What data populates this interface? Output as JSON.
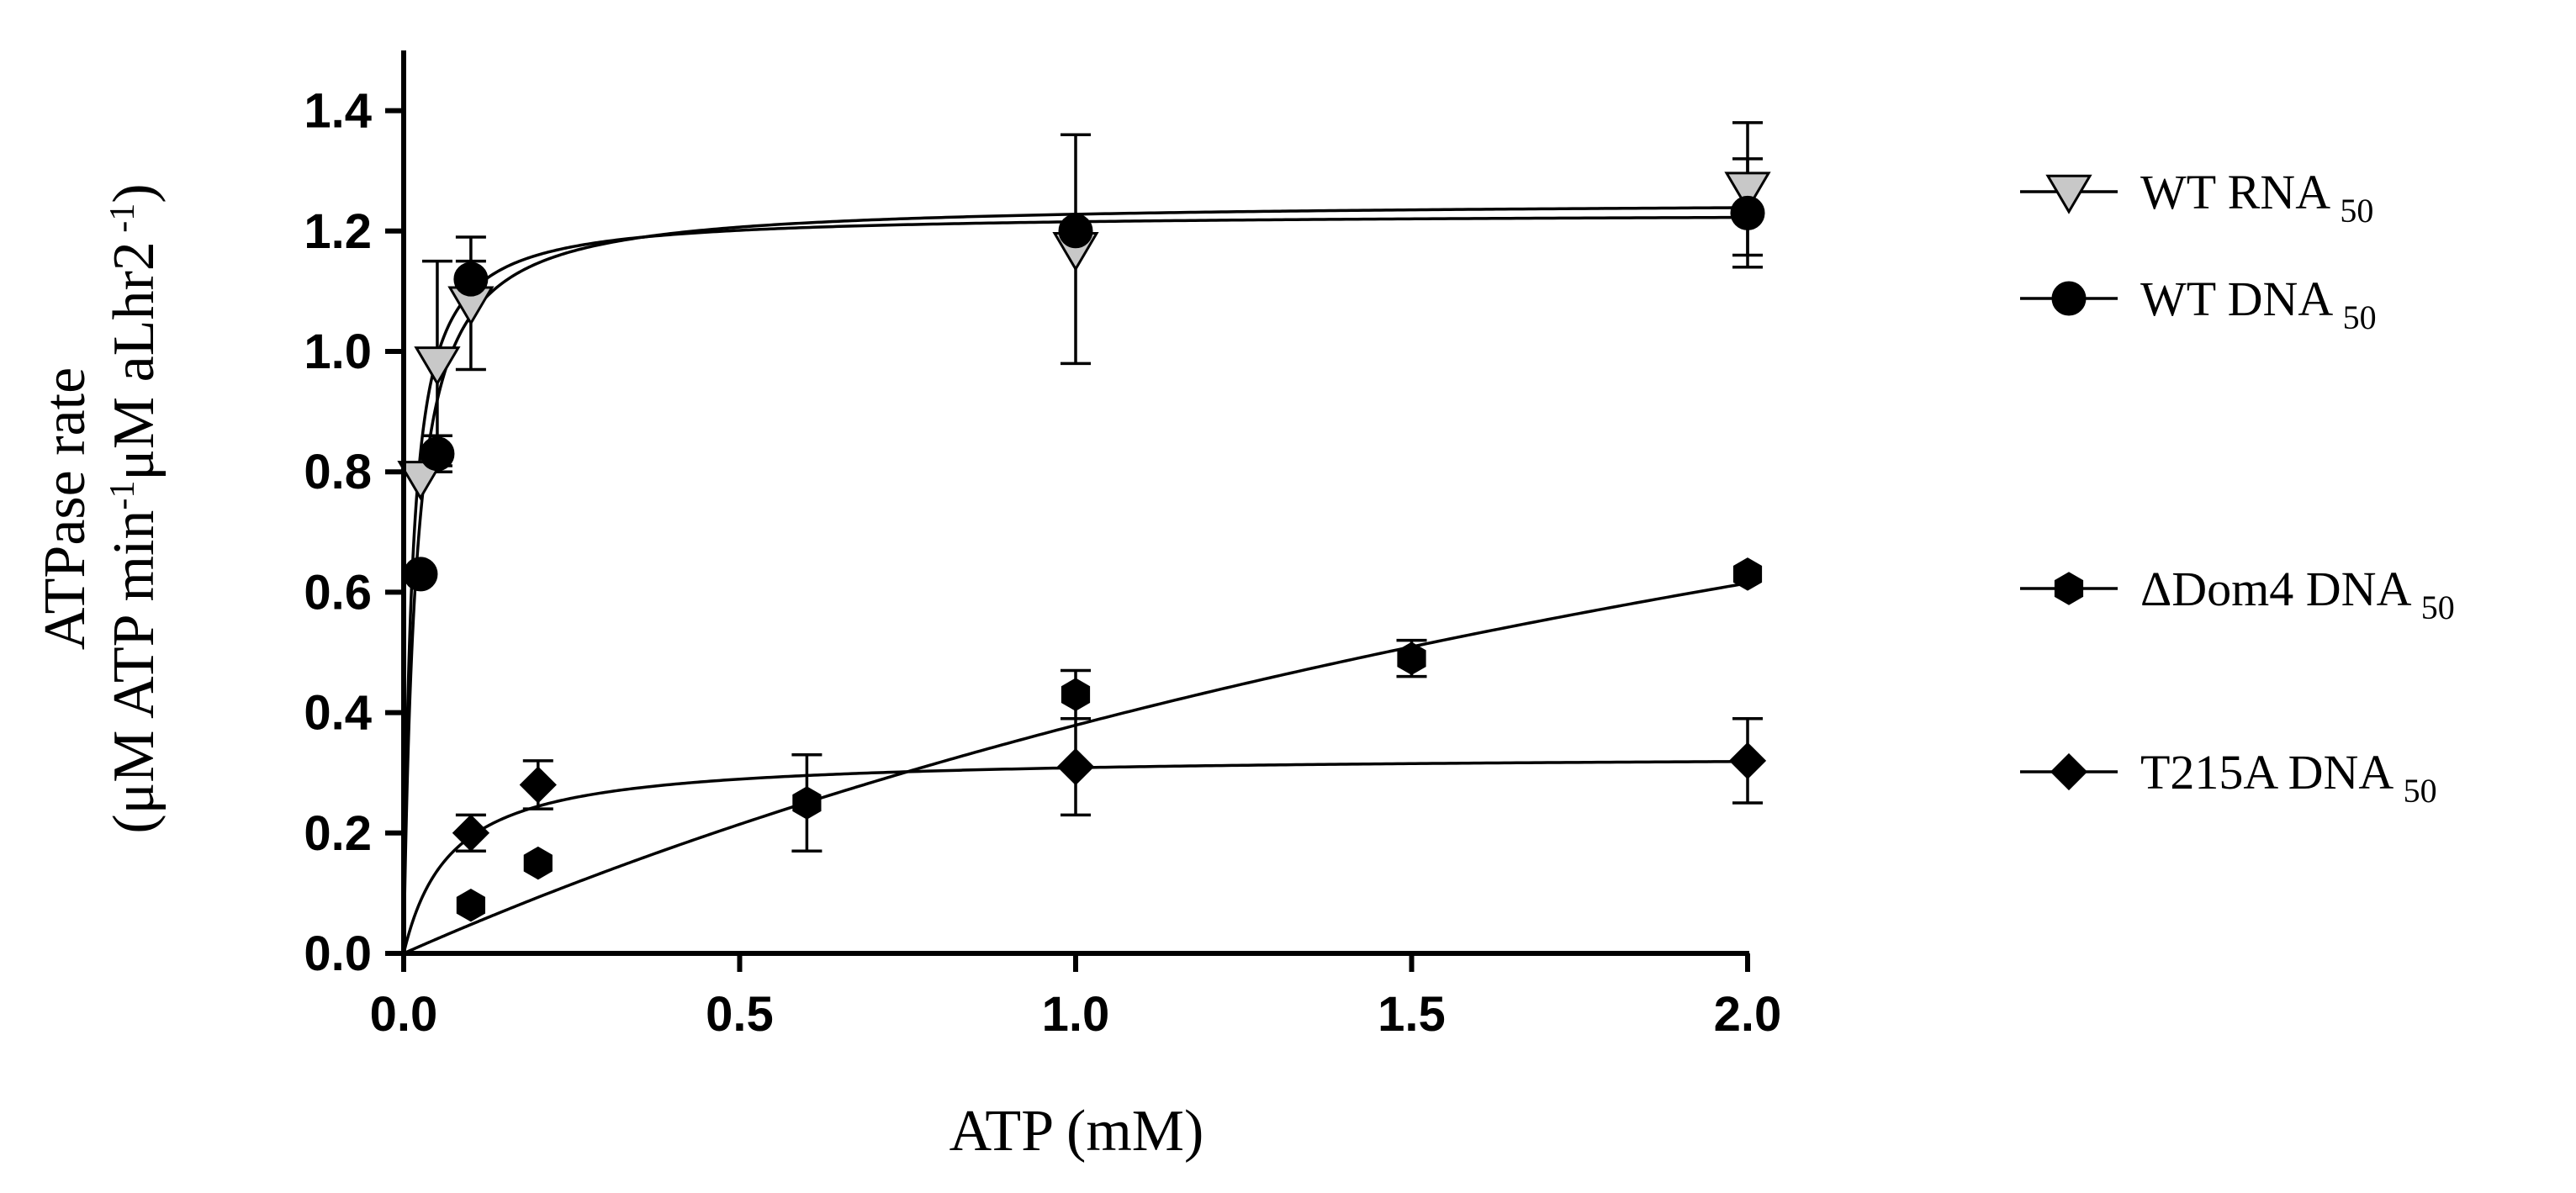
{
  "chart_data": {
    "type": "scatter",
    "xlabel": "ATP (mM)",
    "ylabel_line1": "ATPase rate",
    "ylabel_line2": "(μM ATP min",
    "ylabel_line2_sup1": "-1",
    "ylabel_line2_mid": "μM aLhr2",
    "ylabel_line2_sup2": " -1",
    "ylabel_line2_end": ")",
    "xlim": [
      0,
      2.0
    ],
    "ylim": [
      0,
      1.5
    ],
    "xticks": [
      0.0,
      0.5,
      1.0,
      1.5,
      2.0
    ],
    "xtick_labels": [
      "0.0",
      "0.5",
      "1.0",
      "1.5",
      "2.0"
    ],
    "yticks": [
      0.0,
      0.2,
      0.4,
      0.6,
      0.8,
      1.0,
      1.2,
      1.4
    ],
    "ytick_labels": [
      "0.0",
      "0.2",
      "0.4",
      "0.6",
      "0.8",
      "1.0",
      "1.2",
      "1.4"
    ],
    "series": [
      {
        "name": "WT RNA",
        "sub": "50",
        "marker": "triangle-down",
        "fill": "#c8c8c8",
        "fit": {
          "vmax": 1.25,
          "km": 0.018
        },
        "points": [
          {
            "x": 0.025,
            "y": 0.79,
            "err": 0.0
          },
          {
            "x": 0.05,
            "y": 0.98,
            "err": 0.17
          },
          {
            "x": 0.1,
            "y": 1.08,
            "err": 0.11
          },
          {
            "x": 1.0,
            "y": 1.17,
            "err": 0.19
          },
          {
            "x": 2.0,
            "y": 1.27,
            "err": 0.11
          }
        ]
      },
      {
        "name": "WT DNA",
        "sub": "50",
        "marker": "circle",
        "fill": "#000000",
        "fit": {
          "vmax": 1.23,
          "km": 0.012
        },
        "points": [
          {
            "x": 0.025,
            "y": 0.63,
            "err": 0.0
          },
          {
            "x": 0.05,
            "y": 0.83,
            "err": 0.03
          },
          {
            "x": 0.1,
            "y": 1.12,
            "err": 0.03
          },
          {
            "x": 1.0,
            "y": 1.2,
            "err": 0.0
          },
          {
            "x": 2.0,
            "y": 1.23,
            "err": 0.09
          }
        ]
      },
      {
        "name": "ΔDom4 DNA",
        "sub": "50",
        "marker": "hexagon",
        "fill": "#000000",
        "fit": {
          "vmax": 1.63,
          "km": 3.3
        },
        "points": [
          {
            "x": 0.1,
            "y": 0.08,
            "err": 0.0
          },
          {
            "x": 0.2,
            "y": 0.15,
            "err": 0.0
          },
          {
            "x": 0.6,
            "y": 0.25,
            "err": 0.08
          },
          {
            "x": 1.0,
            "y": 0.43,
            "err": 0.04
          },
          {
            "x": 1.5,
            "y": 0.49,
            "err": 0.03
          },
          {
            "x": 2.0,
            "y": 0.63,
            "err": 0.0
          }
        ]
      },
      {
        "name": "T215A DNA",
        "sub": "50",
        "marker": "diamond",
        "fill": "#000000",
        "fit": {
          "vmax": 0.33,
          "km": 0.07
        },
        "points": [
          {
            "x": 0.1,
            "y": 0.2,
            "err": 0.03
          },
          {
            "x": 0.2,
            "y": 0.28,
            "err": 0.04
          },
          {
            "x": 1.0,
            "y": 0.31,
            "err": 0.08
          },
          {
            "x": 2.0,
            "y": 0.32,
            "err": 0.07
          }
        ]
      }
    ]
  }
}
